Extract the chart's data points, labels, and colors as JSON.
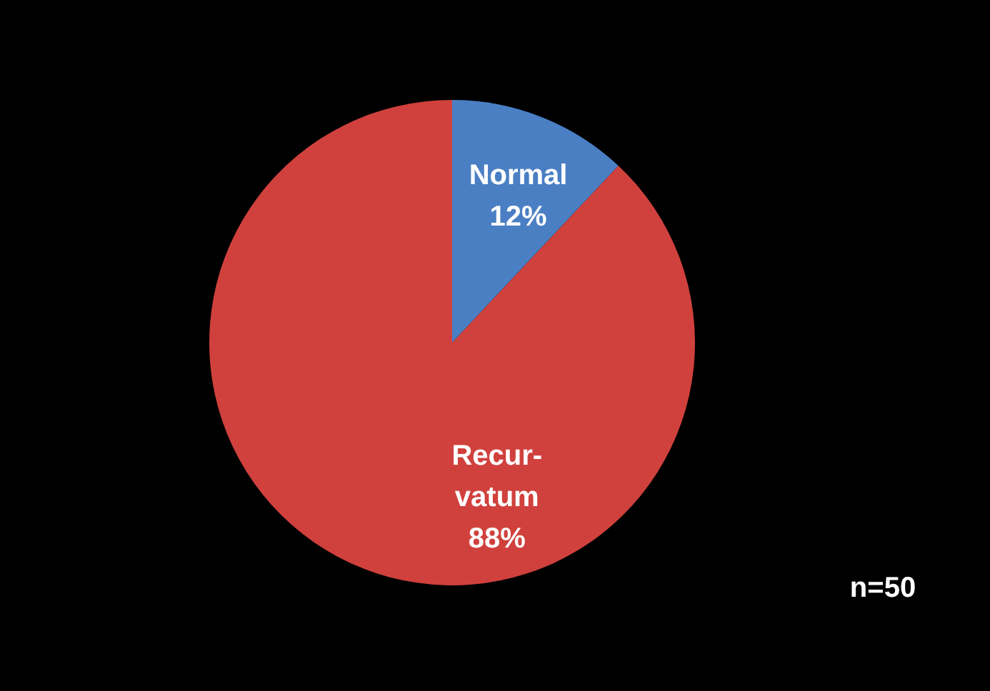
{
  "chart_data": {
    "type": "pie",
    "categories": [
      "Normal",
      "Recur-\nvatum"
    ],
    "values": [
      12,
      88
    ],
    "colors": [
      "#4a7fc4",
      "#d0413d"
    ],
    "value_labels": [
      "12%",
      "88%"
    ],
    "annotations": [
      "n=50"
    ]
  }
}
